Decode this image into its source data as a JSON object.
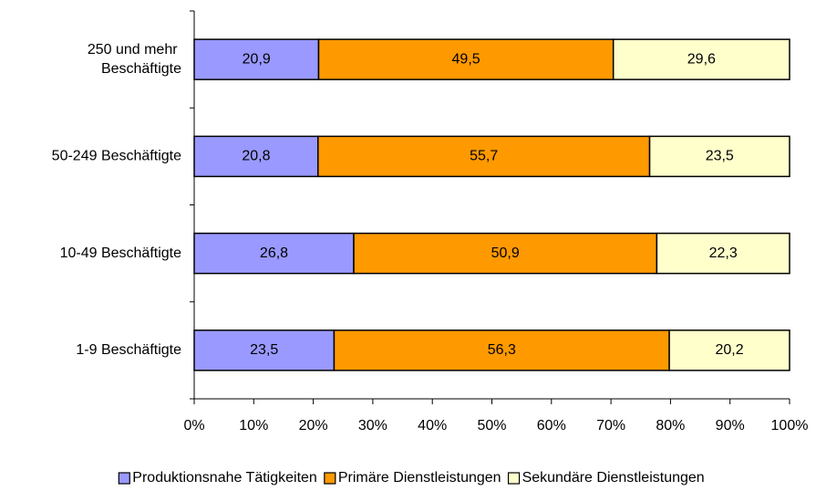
{
  "chart_data": {
    "type": "stacked-bar-horizontal",
    "categories": [
      "250 und mehr Beschäftigte",
      "50-249 Beschäftigte",
      "10-49 Beschäftigte",
      "1-9 Beschäftigte"
    ],
    "series": [
      {
        "name": "Produktionsnahe Tätigkeiten",
        "color": "#9999ff",
        "values": [
          20.9,
          20.8,
          26.8,
          23.5
        ],
        "value_labels": [
          "20,9",
          "20,8",
          "26,8",
          "23,5"
        ]
      },
      {
        "name": "Primäre Dienstleistungen",
        "color": "#ff9900",
        "values": [
          49.5,
          55.7,
          50.9,
          56.3
        ],
        "value_labels": [
          "49,5",
          "55,7",
          "50,9",
          "56,3"
        ]
      },
      {
        "name": "Sekundäre Dienstleistungen",
        "color": "#ffffcc",
        "values": [
          29.6,
          23.5,
          22.3,
          20.2
        ],
        "value_labels": [
          "29,6",
          "23,5",
          "22,3",
          "20,2"
        ]
      }
    ],
    "xlim": [
      0,
      100
    ],
    "xticks": [
      {
        "value": 0,
        "label": "0%"
      },
      {
        "value": 10,
        "label": "10%"
      },
      {
        "value": 20,
        "label": "20%"
      },
      {
        "value": 30,
        "label": "30%"
      },
      {
        "value": 40,
        "label": "40%"
      },
      {
        "value": 50,
        "label": "50%"
      },
      {
        "value": 60,
        "label": "60%"
      },
      {
        "value": 70,
        "label": "70%"
      },
      {
        "value": 80,
        "label": "80%"
      },
      {
        "value": 90,
        "label": "90%"
      },
      {
        "value": 100,
        "label": "100%"
      }
    ],
    "legend": "bottom"
  }
}
